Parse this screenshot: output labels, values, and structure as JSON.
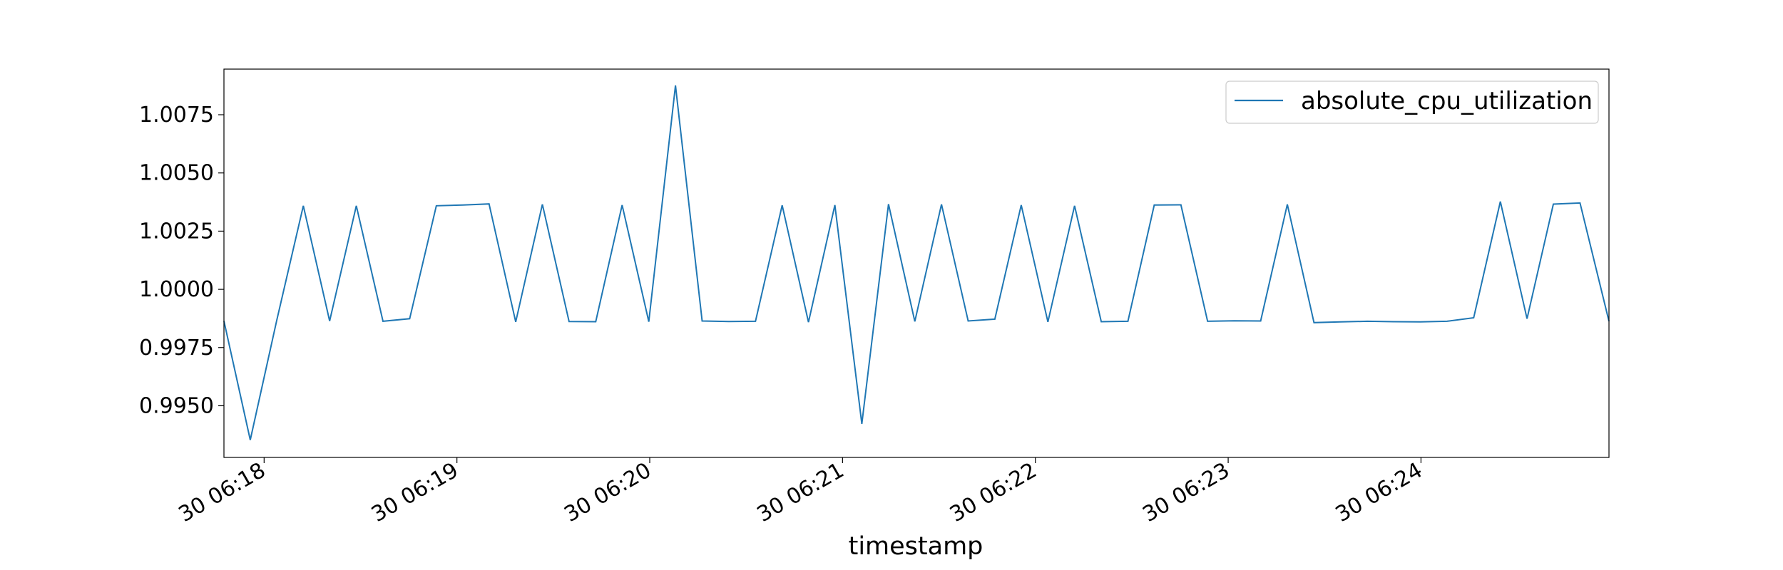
{
  "chart_data": {
    "type": "line",
    "title": "",
    "xlabel": "timestamp",
    "ylabel": "",
    "x_tick_labels": [
      "30 06:18",
      "30 06:19",
      "30 06:20",
      "30 06:21",
      "30 06:22",
      "30 06:23",
      "30 06:24"
    ],
    "x_tick_seconds": [
      1080,
      1140,
      1200,
      1260,
      1320,
      1380,
      1440
    ],
    "y_tick_labels": [
      "0.9950",
      "0.9975",
      "1.0000",
      "1.0025",
      "1.0050",
      "1.0075"
    ],
    "y_tick_values": [
      0.995,
      0.9975,
      1.0,
      1.0025,
      1.005,
      1.0075
    ],
    "xlim_seconds": [
      1067.5,
      1498.5
    ],
    "ylim": [
      0.99278,
      1.00946
    ],
    "legend_position": "top-right",
    "grid": false,
    "color": "#1f77b4",
    "series": [
      {
        "name": "absolute_cpu_utilization",
        "x_seconds": [
          1067.5,
          1075.7,
          1083.9,
          1092.2,
          1100.4,
          1108.7,
          1117.0,
          1125.3,
          1133.6,
          1141.8,
          1150.0,
          1158.3,
          1166.6,
          1174.9,
          1183.2,
          1191.4,
          1199.7,
          1208.0,
          1216.3,
          1224.6,
          1232.9,
          1241.2,
          1249.4,
          1257.6,
          1266.0,
          1274.3,
          1282.5,
          1290.8,
          1299.1,
          1307.4,
          1315.6,
          1323.9,
          1332.2,
          1340.5,
          1348.8,
          1357.0,
          1365.3,
          1373.6,
          1381.9,
          1390.1,
          1398.4,
          1406.7,
          1415.0,
          1423.3,
          1431.5,
          1439.8,
          1448.1,
          1456.4,
          1464.7,
          1473.0,
          1481.2,
          1489.5,
          1498.5
        ],
        "values": [
          0.99864,
          0.99353,
          0.99865,
          1.00359,
          0.99864,
          1.00359,
          0.99863,
          0.99874,
          1.00359,
          1.00362,
          1.00367,
          0.9986,
          1.00365,
          0.99862,
          0.99861,
          1.00362,
          0.99861,
          1.00876,
          0.99864,
          0.99862,
          0.99863,
          1.00361,
          0.99859,
          1.00362,
          0.99422,
          1.00366,
          0.99862,
          1.00365,
          0.99864,
          0.99872,
          1.00362,
          0.9986,
          1.00359,
          0.99861,
          0.99863,
          1.00362,
          1.00363,
          0.99863,
          0.99865,
          0.99864,
          1.00365,
          0.99857,
          0.9986,
          0.99863,
          0.99861,
          0.9986,
          0.99863,
          0.99878,
          1.00377,
          0.99874,
          1.00366,
          1.00371,
          0.99863
        ]
      }
    ]
  }
}
